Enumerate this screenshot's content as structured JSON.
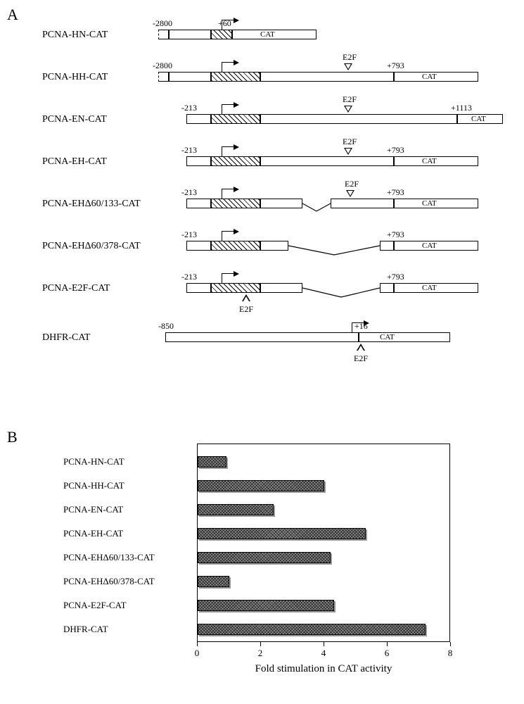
{
  "panel_a_label": "A",
  "panel_b_label": "B",
  "constructs": [
    {
      "name": "PCNA-HN-CAT",
      "left_pos": "-2800",
      "tss_pos": "+60",
      "right_pos": null,
      "e2f_down": false,
      "e2f_up": false,
      "cat": "CAT"
    },
    {
      "name": "PCNA-HH-CAT",
      "left_pos": "-2800",
      "tss_pos": null,
      "right_pos": "+793",
      "e2f_down": true,
      "e2f_up": false,
      "cat": "CAT"
    },
    {
      "name": "PCNA-EN-CAT",
      "left_pos": "-213",
      "tss_pos": null,
      "right_pos": "+1113",
      "e2f_down": true,
      "e2f_up": false,
      "cat": "CAT"
    },
    {
      "name": "PCNA-EH-CAT",
      "left_pos": "-213",
      "tss_pos": null,
      "right_pos": "+793",
      "e2f_down": true,
      "e2f_up": false,
      "cat": "CAT"
    },
    {
      "name": "PCNA-EHΔ60/133-CAT",
      "left_pos": "-213",
      "tss_pos": null,
      "right_pos": "+793",
      "e2f_down": true,
      "e2f_up": false,
      "cat": "CAT"
    },
    {
      "name": "PCNA-EHΔ60/378-CAT",
      "left_pos": "-213",
      "tss_pos": null,
      "right_pos": "+793",
      "e2f_down": false,
      "e2f_up": false,
      "cat": "CAT"
    },
    {
      "name": "PCNA-E2F-CAT",
      "left_pos": "-213",
      "tss_pos": null,
      "right_pos": "+793",
      "e2f_down": false,
      "e2f_up": true,
      "e2f_up_label": "E2F",
      "cat": "CAT"
    },
    {
      "name": "DHFR-CAT",
      "left_pos": "-850",
      "tss_pos": null,
      "right_pos": "+16",
      "e2f_down": false,
      "e2f_up": true,
      "e2f_up_label": "E2F",
      "cat": "CAT"
    }
  ],
  "e2f_label": "E2F",
  "bar_chart": {
    "type": "bar",
    "x_axis_title": "Fold stimulation in CAT activity",
    "xlim": [
      0,
      8
    ],
    "xtick_step": 2,
    "xticks": [
      0,
      2,
      4,
      6,
      8
    ],
    "bar_color": "#707070",
    "bar_border_color": "#000000",
    "background_color": "#ffffff",
    "frame_color": "#000000",
    "label_fontsize": 13,
    "tick_fontsize": 13,
    "title_fontsize": 15,
    "rows": [
      {
        "label": "PCNA-HN-CAT",
        "value": 0.9
      },
      {
        "label": "PCNA-HH-CAT",
        "value": 4.0
      },
      {
        "label": "PCNA-EN-CAT",
        "value": 2.4
      },
      {
        "label": "PCNA-EH-CAT",
        "value": 5.3
      },
      {
        "label": "PCNA-EHΔ60/133-CAT",
        "value": 4.2
      },
      {
        "label": "PCNA-EHΔ60/378-CAT",
        "value": 1.0
      },
      {
        "label": "PCNA-E2F-CAT",
        "value": 4.3
      },
      {
        "label": "DHFR-CAT",
        "value": 7.2
      }
    ]
  }
}
